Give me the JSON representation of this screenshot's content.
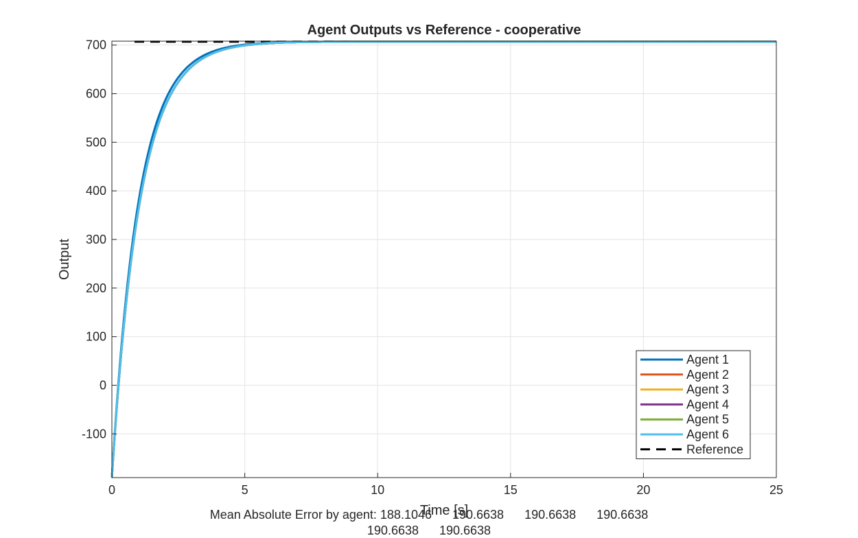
{
  "chart_data": {
    "type": "line",
    "title": "Agent Outputs vs Reference - cooperative",
    "xlabel": "Time [s]",
    "ylabel": "Output",
    "xlim": [
      0,
      25
    ],
    "ylim": [
      -190,
      708
    ],
    "xticks": [
      0,
      5,
      10,
      15,
      20,
      25
    ],
    "yticks": [
      -100,
      0,
      100,
      200,
      300,
      400,
      500,
      600,
      700
    ],
    "grid": true,
    "legend_position": "bottom-right",
    "reference": {
      "name": "Reference",
      "value": 707,
      "color": "#000000",
      "style": "dashed"
    },
    "series": [
      {
        "name": "Agent 1",
        "color": "#0072BD",
        "y0": -190,
        "y_final": 707,
        "tau": 1.0
      },
      {
        "name": "Agent 2",
        "color": "#D95319",
        "y0": -190,
        "y_final": 707,
        "tau": 1.05
      },
      {
        "name": "Agent 3",
        "color": "#EDB120",
        "y0": -190,
        "y_final": 707,
        "tau": 1.05
      },
      {
        "name": "Agent 4",
        "color": "#7E2F8E",
        "y0": -190,
        "y_final": 707,
        "tau": 1.05
      },
      {
        "name": "Agent 5",
        "color": "#77AC30",
        "y0": -190,
        "y_final": 707,
        "tau": 1.05
      },
      {
        "name": "Agent 6",
        "color": "#4DBEEE",
        "y0": -190,
        "y_final": 707,
        "tau": 1.05
      }
    ]
  },
  "footer": {
    "line1": "Mean Absolute Error by agent: 188.1046      190.6638      190.6638      190.6638",
    "line2": "190.6638      190.6638"
  }
}
